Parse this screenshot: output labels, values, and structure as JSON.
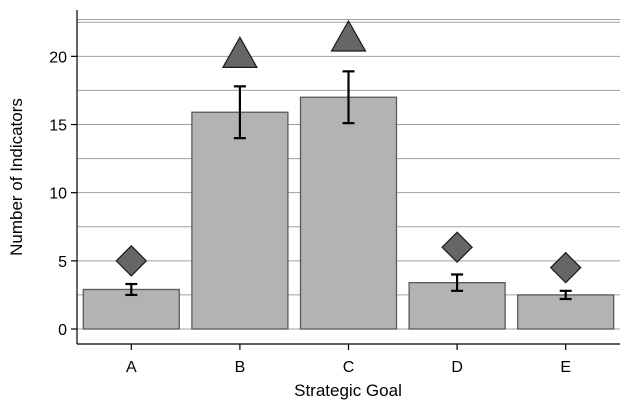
{
  "chart_data": {
    "type": "bar",
    "xlabel": "Strategic Goal",
    "ylabel": "Number of Indicators",
    "categories": [
      "A",
      "B",
      "C",
      "D",
      "E"
    ],
    "values": [
      2.9,
      15.9,
      17.0,
      3.4,
      2.5
    ],
    "error_low": [
      2.5,
      14.0,
      15.1,
      2.8,
      2.2
    ],
    "error_high": [
      3.3,
      17.8,
      18.9,
      4.0,
      2.8
    ],
    "markers": [
      {
        "shape": "diamond",
        "value": 5.0
      },
      {
        "shape": "triangle",
        "value": 20.0
      },
      {
        "shape": "triangle",
        "value": 21.2
      },
      {
        "shape": "diamond",
        "value": 6.0
      },
      {
        "shape": "diamond",
        "value": 4.5
      }
    ],
    "yticks": [
      0,
      5,
      10,
      15,
      20
    ],
    "ylim": [
      -1.1,
      23.4
    ],
    "gridlines": [
      0,
      2.5,
      5,
      7.5,
      10,
      12.5,
      15,
      17.5,
      20,
      22.5,
      22.7
    ],
    "grid": true,
    "legend": "none",
    "colors": {
      "bar_fill": "#b3b3b3",
      "bar_stroke": "#5a5a5a",
      "marker_fill": "#666666",
      "marker_stroke": "#1a1a1a",
      "gridline": "#a0a0a0",
      "errorbar": "#000000"
    }
  }
}
